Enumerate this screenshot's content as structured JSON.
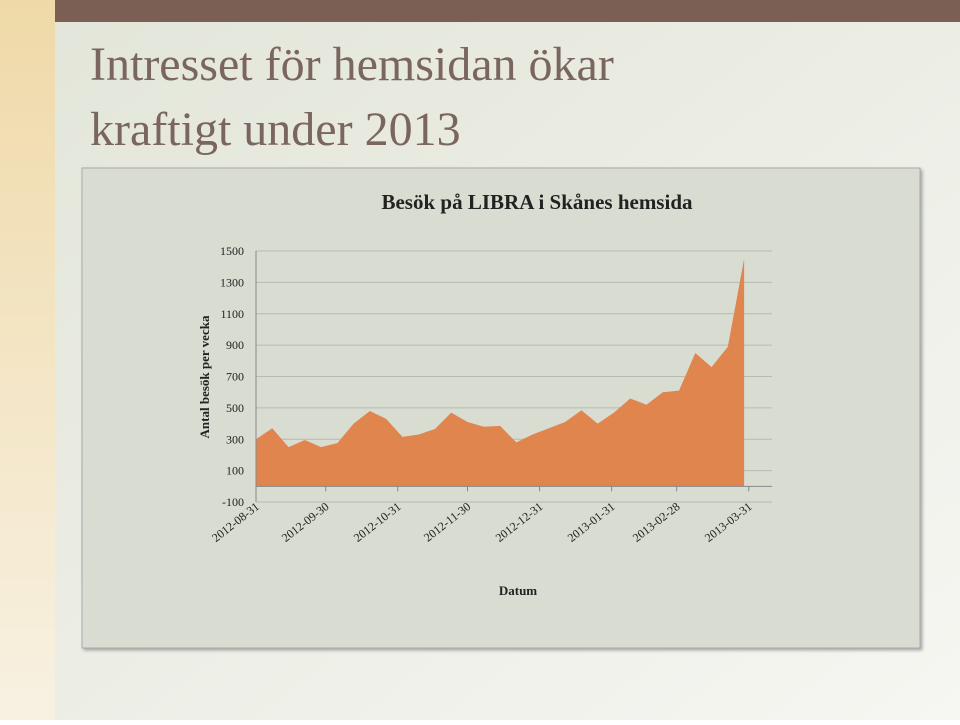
{
  "slide_title": [
    "Intresset för hemsidan ökar",
    "kraftigt under 2013"
  ],
  "chart_data": {
    "type": "area",
    "title": "Besök på LIBRA i Skånes hemsida",
    "x_label": "Datum",
    "y_label": "Antal besök per vecka",
    "x": [
      "2012-08-31",
      "2012-09-07",
      "2012-09-14",
      "2012-09-21",
      "2012-09-28",
      "2012-10-05",
      "2012-10-12",
      "2012-10-19",
      "2012-10-26",
      "2012-11-02",
      "2012-11-09",
      "2012-11-16",
      "2012-11-23",
      "2012-11-30",
      "2012-12-07",
      "2012-12-14",
      "2012-12-21",
      "2012-12-28",
      "2013-01-04",
      "2013-01-11",
      "2013-01-18",
      "2013-01-25",
      "2013-02-01",
      "2013-02-08",
      "2013-02-15",
      "2013-02-22",
      "2013-03-01",
      "2013-03-08",
      "2013-03-15",
      "2013-03-22",
      "2013-03-29"
    ],
    "values": [
      300,
      370,
      250,
      295,
      250,
      275,
      400,
      480,
      430,
      315,
      330,
      365,
      470,
      410,
      380,
      385,
      280,
      330,
      370,
      410,
      485,
      400,
      470,
      560,
      520,
      600,
      610,
      850,
      760,
      890,
      1450
    ],
    "color": "#e0854e",
    "xlim": [
      "2012-08-31",
      "2013-04-10"
    ],
    "xticks": [
      "2012-08-31",
      "2012-09-30",
      "2012-10-31",
      "2012-11-30",
      "2012-12-31",
      "2013-01-31",
      "2013-02-28",
      "2013-03-31"
    ],
    "ylim": [
      -100,
      1500
    ],
    "yticks": [
      -100,
      100,
      300,
      500,
      700,
      900,
      1100,
      1300,
      1500
    ],
    "grid": true
  }
}
